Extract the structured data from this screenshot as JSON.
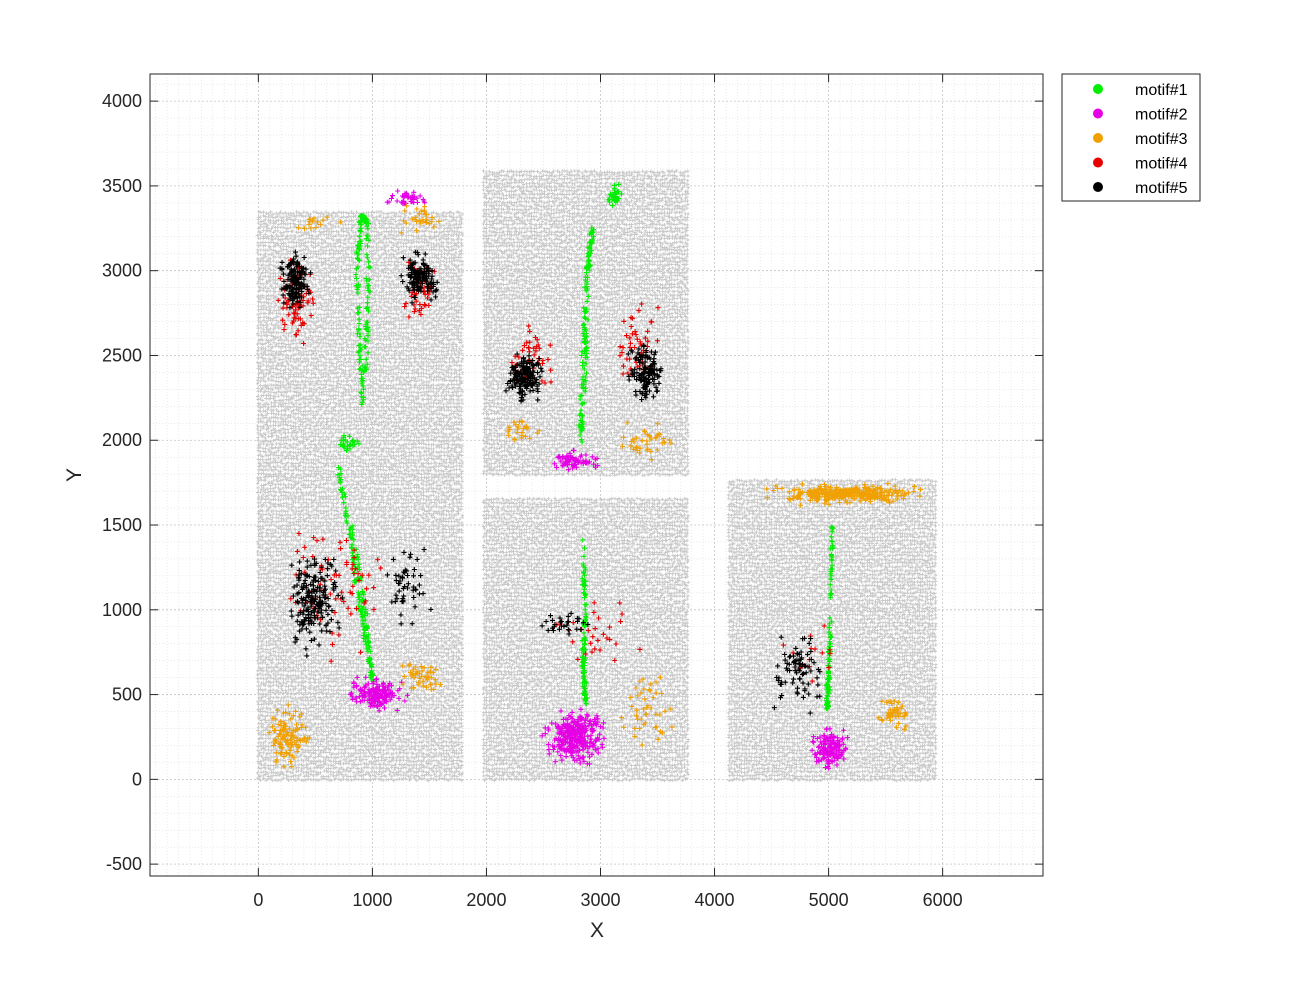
{
  "chart_data": {
    "type": "scatter",
    "title": "",
    "xlabel": "X",
    "ylabel": "Y",
    "xlim": [
      -950,
      6880
    ],
    "ylim": [
      -570,
      4160
    ],
    "xticks": [
      0,
      1000,
      2000,
      3000,
      4000,
      5000,
      6000
    ],
    "yticks": [
      -500,
      0,
      500,
      1000,
      1500,
      2000,
      2500,
      3000,
      3500,
      4000
    ],
    "grid": true,
    "minor_grid": true,
    "box": true,
    "legend_position": "outside-top-right",
    "background_points": {
      "color": "#c8c8c8",
      "regions": [
        {
          "x": [
            0,
            1800
          ],
          "y": [
            0,
            1800
          ]
        },
        {
          "x": [
            0,
            1800
          ],
          "y": [
            1800,
            3350
          ]
        },
        {
          "x": [
            1980,
            3780
          ],
          "y": [
            1800,
            3600
          ]
        },
        {
          "x": [
            1980,
            3780
          ],
          "y": [
            0,
            1660
          ]
        },
        {
          "x": [
            4130,
            5950
          ],
          "y": [
            0,
            1770
          ]
        }
      ]
    },
    "series": [
      {
        "name": "motif#1",
        "color": "#00ee00",
        "clusters": [
          {
            "path": [
              [
                920,
                2200
              ],
              [
                880,
                2600
              ],
              [
                870,
                3050
              ],
              [
                900,
                3330
              ],
              [
                960,
                3280
              ],
              [
                960,
                2800
              ],
              [
                930,
                2300
              ]
            ],
            "spread": 18,
            "n": 160
          },
          {
            "path": [
              [
                2820,
                1950
              ],
              [
                2870,
                2400
              ],
              [
                2880,
                2900
              ],
              [
                2930,
                3250
              ],
              [
                2880,
                3000
              ],
              [
                2850,
                2500
              ],
              [
                2830,
                2050
              ]
            ],
            "spread": 18,
            "n": 150
          },
          {
            "path": [
              [
                700,
                1850
              ],
              [
                800,
                1450
              ],
              [
                900,
                1000
              ],
              [
                1000,
                580
              ],
              [
                930,
                1000
              ],
              [
                820,
                1500
              ]
            ],
            "spread": 18,
            "n": 160
          },
          {
            "path": [
              [
                2840,
                1420
              ],
              [
                2870,
                1000
              ],
              [
                2850,
                700
              ],
              [
                2870,
                450
              ]
            ],
            "spread": 16,
            "n": 110
          },
          {
            "path": [
              [
                5030,
                1500
              ],
              [
                5020,
                1000
              ],
              [
                5000,
                600
              ],
              [
                4990,
                420
              ]
            ],
            "spread": 14,
            "n": 110
          },
          {
            "center": [
              3120,
              3450
            ],
            "rx": 80,
            "ry": 80,
            "n": 35
          },
          {
            "center": [
              800,
              1980
            ],
            "rx": 120,
            "ry": 70,
            "n": 25
          }
        ]
      },
      {
        "name": "motif#2",
        "color": "#e600e6",
        "clusters": [
          {
            "center": [
              2780,
              250
            ],
            "rx": 330,
            "ry": 200,
            "n": 320
          },
          {
            "center": [
              5020,
              180
            ],
            "rx": 200,
            "ry": 160,
            "n": 150
          },
          {
            "center": [
              1020,
              500
            ],
            "rx": 330,
            "ry": 120,
            "n": 160
          },
          {
            "center": [
              2800,
              1880
            ],
            "rx": 280,
            "ry": 90,
            "n": 70
          },
          {
            "center": [
              1300,
              3420
            ],
            "rx": 250,
            "ry": 80,
            "n": 40
          }
        ]
      },
      {
        "name": "motif#3",
        "color": "#f0a000",
        "clusters": [
          {
            "center": [
              5150,
              1680
            ],
            "rx": 800,
            "ry": 70,
            "n": 320
          },
          {
            "center": [
              250,
              250
            ],
            "rx": 230,
            "ry": 220,
            "n": 110
          },
          {
            "center": [
              5570,
              380
            ],
            "rx": 180,
            "ry": 120,
            "n": 45
          },
          {
            "center": [
              3400,
              400
            ],
            "rx": 280,
            "ry": 300,
            "n": 45
          },
          {
            "center": [
              1450,
              600
            ],
            "rx": 250,
            "ry": 130,
            "n": 45
          },
          {
            "center": [
              3400,
              2000
            ],
            "rx": 330,
            "ry": 150,
            "n": 40
          },
          {
            "center": [
              2300,
              2050
            ],
            "rx": 250,
            "ry": 100,
            "n": 25
          },
          {
            "center": [
              1400,
              3300
            ],
            "rx": 230,
            "ry": 130,
            "n": 30
          },
          {
            "center": [
              500,
              3280
            ],
            "rx": 300,
            "ry": 60,
            "n": 15
          }
        ]
      },
      {
        "name": "motif#4",
        "color": "#e60000",
        "clusters": [
          {
            "center": [
              340,
              2820
            ],
            "rx": 230,
            "ry": 320,
            "n": 85
          },
          {
            "center": [
              1400,
              2880
            ],
            "rx": 200,
            "ry": 250,
            "n": 55
          },
          {
            "center": [
              2400,
              2450
            ],
            "rx": 230,
            "ry": 280,
            "n": 45
          },
          {
            "center": [
              3330,
              2550
            ],
            "rx": 260,
            "ry": 330,
            "n": 55
          },
          {
            "center": [
              650,
              1100
            ],
            "rx": 500,
            "ry": 550,
            "n": 75
          },
          {
            "center": [
              2950,
              900
            ],
            "rx": 500,
            "ry": 300,
            "n": 30
          },
          {
            "center": [
              4780,
              700
            ],
            "rx": 350,
            "ry": 330,
            "n": 15
          }
        ]
      },
      {
        "name": "motif#5",
        "color": "#000000",
        "clusters": [
          {
            "center": [
              330,
              2950
            ],
            "rx": 160,
            "ry": 210,
            "n": 150
          },
          {
            "center": [
              1420,
              2950
            ],
            "rx": 190,
            "ry": 170,
            "n": 130
          },
          {
            "center": [
              2330,
              2370
            ],
            "rx": 200,
            "ry": 170,
            "n": 170
          },
          {
            "center": [
              3400,
              2400
            ],
            "rx": 180,
            "ry": 200,
            "n": 130
          },
          {
            "center": [
              480,
              1050
            ],
            "rx": 280,
            "ry": 350,
            "n": 200
          },
          {
            "center": [
              1300,
              1150
            ],
            "rx": 250,
            "ry": 280,
            "n": 50
          },
          {
            "center": [
              2700,
              900
            ],
            "rx": 250,
            "ry": 120,
            "n": 30
          },
          {
            "center": [
              4720,
              650
            ],
            "rx": 280,
            "ry": 300,
            "n": 80
          }
        ]
      }
    ]
  }
}
